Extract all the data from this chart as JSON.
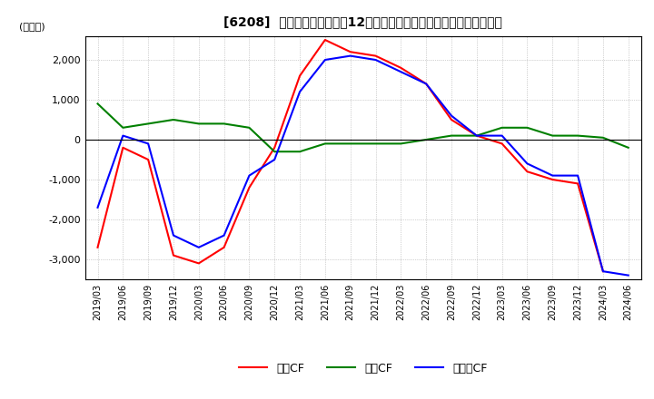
{
  "title": "[6208]  キャッシュフローの12か月移動合計の対前年同期増減額の推移",
  "ylabel": "(百万円)",
  "ylim": [
    -3500,
    2600
  ],
  "yticks": [
    -3000,
    -2000,
    -1000,
    0,
    1000,
    2000
  ],
  "dates": [
    "2019/03",
    "2019/06",
    "2019/09",
    "2019/12",
    "2020/03",
    "2020/06",
    "2020/09",
    "2020/12",
    "2021/03",
    "2021/06",
    "2021/09",
    "2021/12",
    "2022/03",
    "2022/06",
    "2022/09",
    "2022/12",
    "2023/03",
    "2023/06",
    "2023/09",
    "2023/12",
    "2024/03",
    "2024/06"
  ],
  "eigyo_cf": [
    -2700,
    -200,
    -500,
    -2900,
    -3100,
    -2700,
    -1200,
    -200,
    1600,
    2500,
    2200,
    2100,
    1800,
    1400,
    500,
    100,
    -100,
    -800,
    -1000,
    -1100,
    -3300,
    null
  ],
  "toshi_cf": [
    900,
    300,
    400,
    500,
    400,
    400,
    300,
    -300,
    -300,
    -100,
    -100,
    -100,
    -100,
    0,
    100,
    100,
    300,
    300,
    100,
    100,
    50,
    -200
  ],
  "free_cf": [
    -1700,
    100,
    -100,
    -2400,
    -2700,
    -2400,
    -900,
    -500,
    1200,
    2000,
    2100,
    2000,
    1700,
    1400,
    600,
    100,
    100,
    -600,
    -900,
    -900,
    -3300,
    -3400
  ],
  "eigyo_color": "#ff0000",
  "toshi_color": "#008000",
  "free_color": "#0000ff",
  "legend_labels": [
    "営業CF",
    "投資CF",
    "フリーCF"
  ],
  "background_color": "#ffffff",
  "grid_color": "#aaaaaa"
}
